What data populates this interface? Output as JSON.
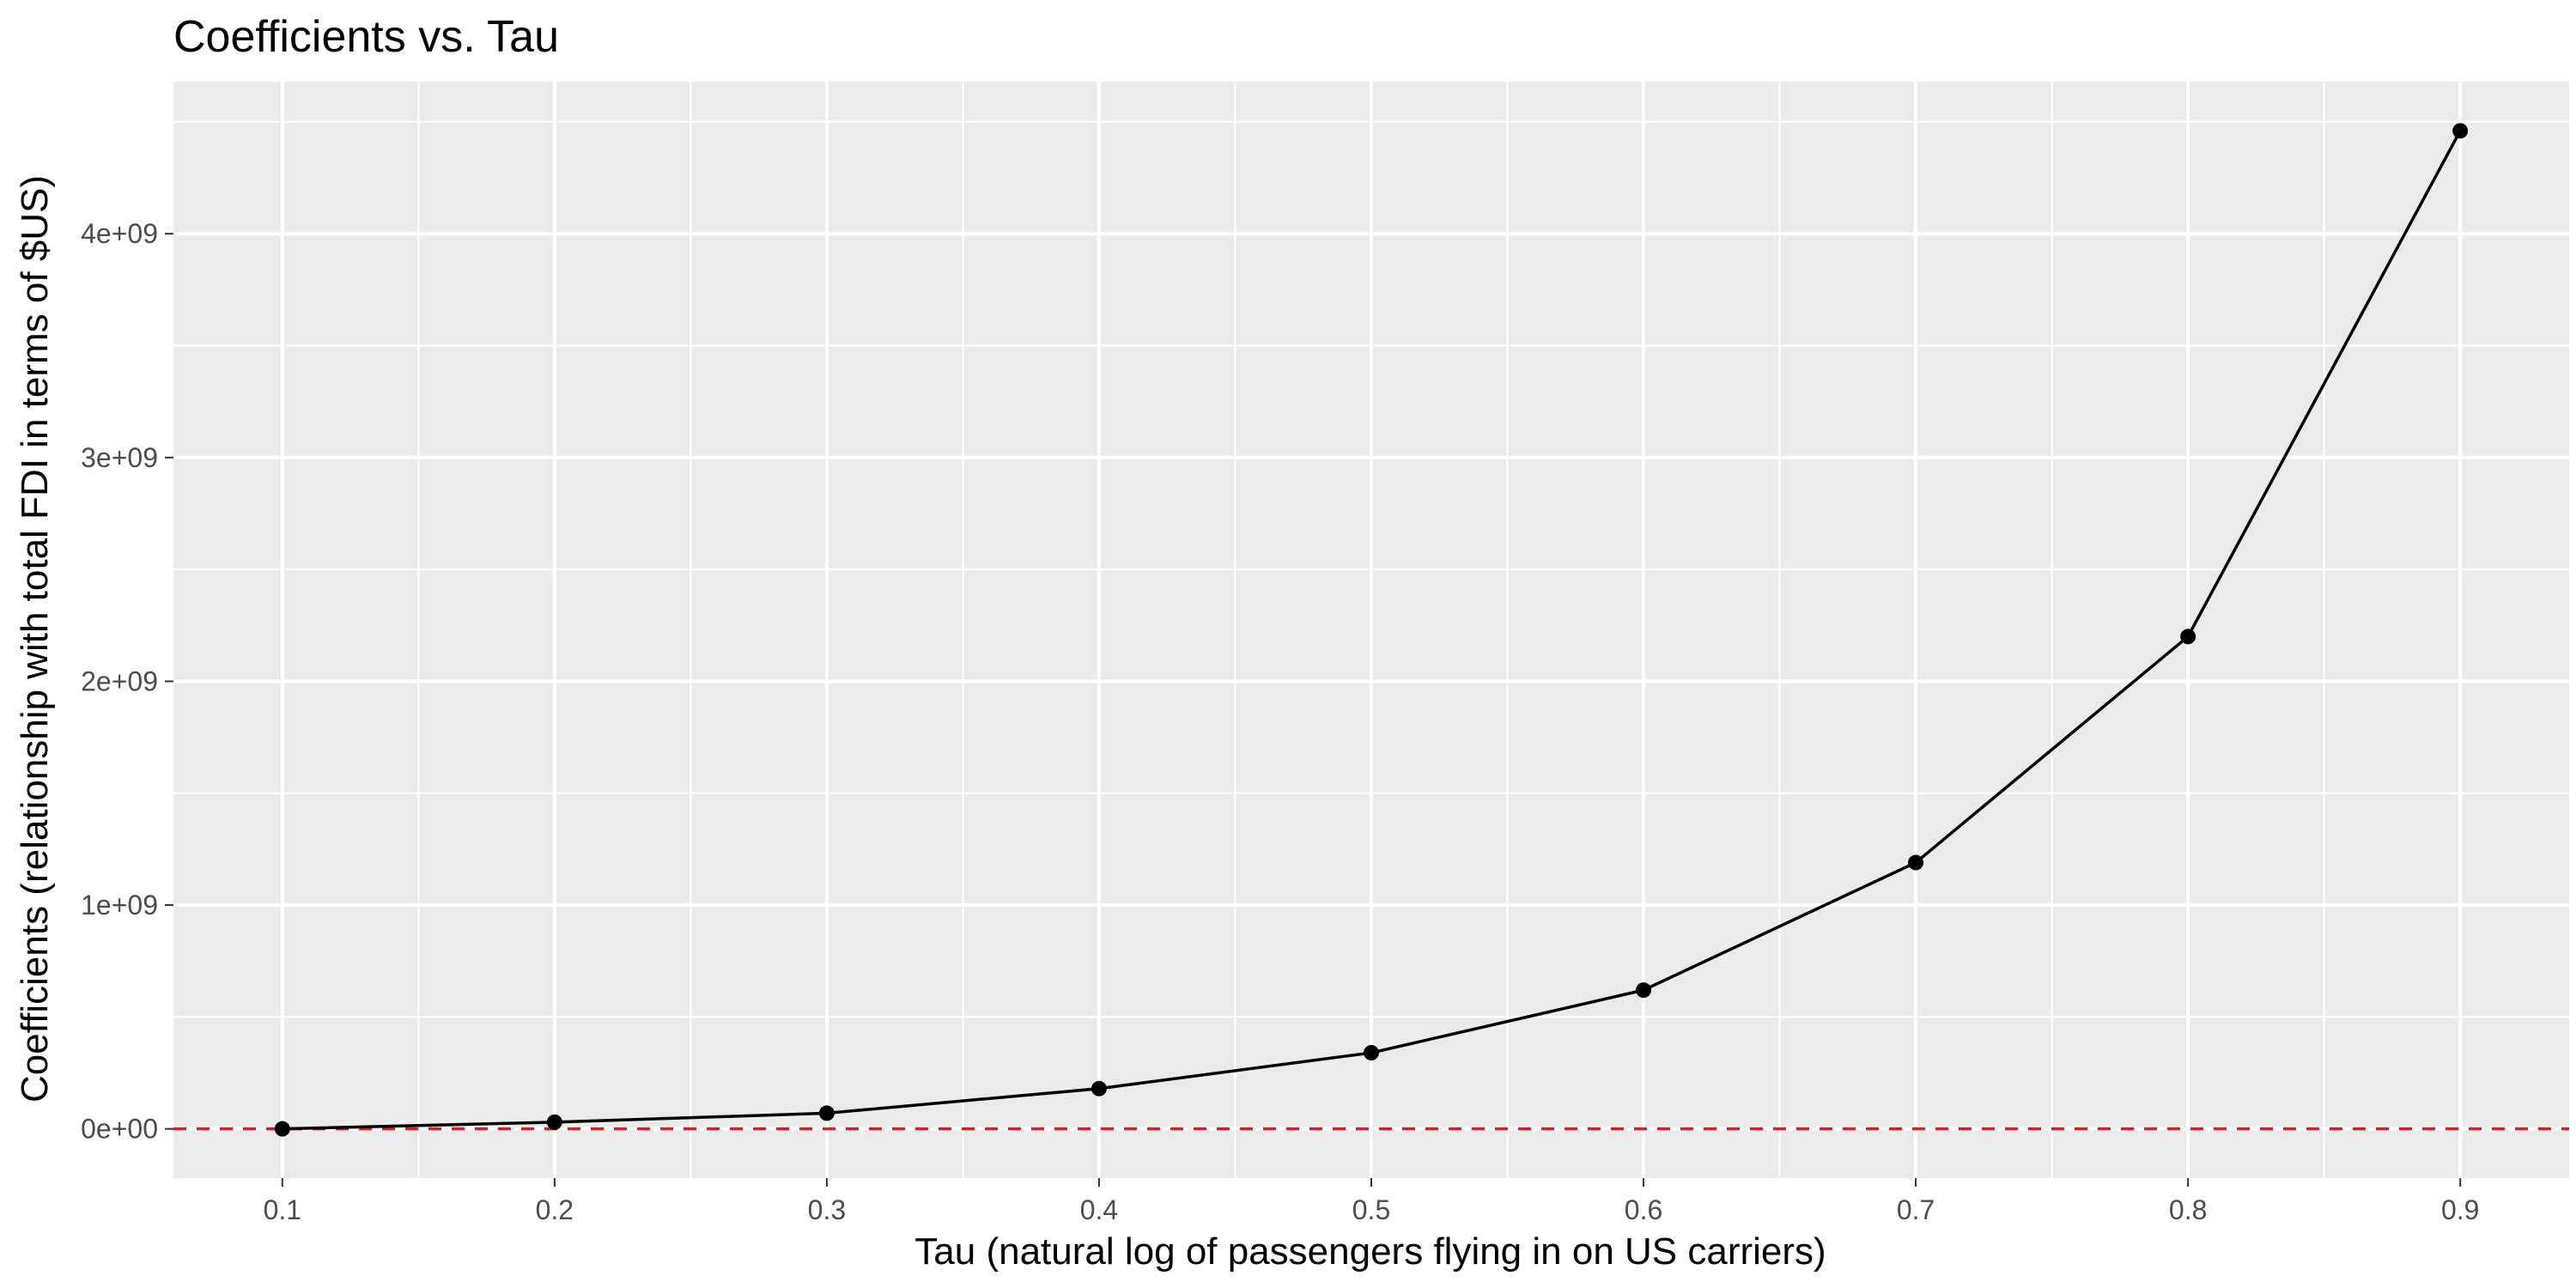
{
  "chart_data": {
    "type": "line",
    "title": "Coefficients vs. Tau",
    "xlabel": "Tau (natural log of passengers flying in on US carriers)",
    "ylabel": "Coefficients (relationship with total FDI in terms of $US)",
    "x": [
      0.1,
      0.2,
      0.3,
      0.4,
      0.5,
      0.6,
      0.7,
      0.8,
      0.9
    ],
    "series": [
      {
        "values": [
          0,
          30000000,
          70000000,
          180000000,
          340000000,
          620000000,
          1190000000,
          2200000000,
          4460000000
        ]
      }
    ],
    "xlim": [
      0.06,
      0.94
    ],
    "ylim": [
      -220000000,
      4680000000
    ],
    "x_ticks": [
      0.1,
      0.2,
      0.3,
      0.4,
      0.5,
      0.6,
      0.7,
      0.8,
      0.9
    ],
    "x_tick_labels": [
      "0.1",
      "0.2",
      "0.3",
      "0.4",
      "0.5",
      "0.6",
      "0.7",
      "0.8",
      "0.9"
    ],
    "y_ticks": [
      0,
      1000000000,
      2000000000,
      3000000000,
      4000000000
    ],
    "y_tick_labels": [
      "0e+00",
      "1e+09",
      "2e+09",
      "3e+09",
      "4e+09"
    ],
    "reference_line": {
      "y": 0,
      "color": "#e41a1c",
      "style": "dashed"
    },
    "grid": true,
    "legend": "none",
    "colors": {
      "panel_background": "#ebebeb",
      "grid": "#ffffff",
      "line": "#000000",
      "point": "#000000"
    }
  }
}
